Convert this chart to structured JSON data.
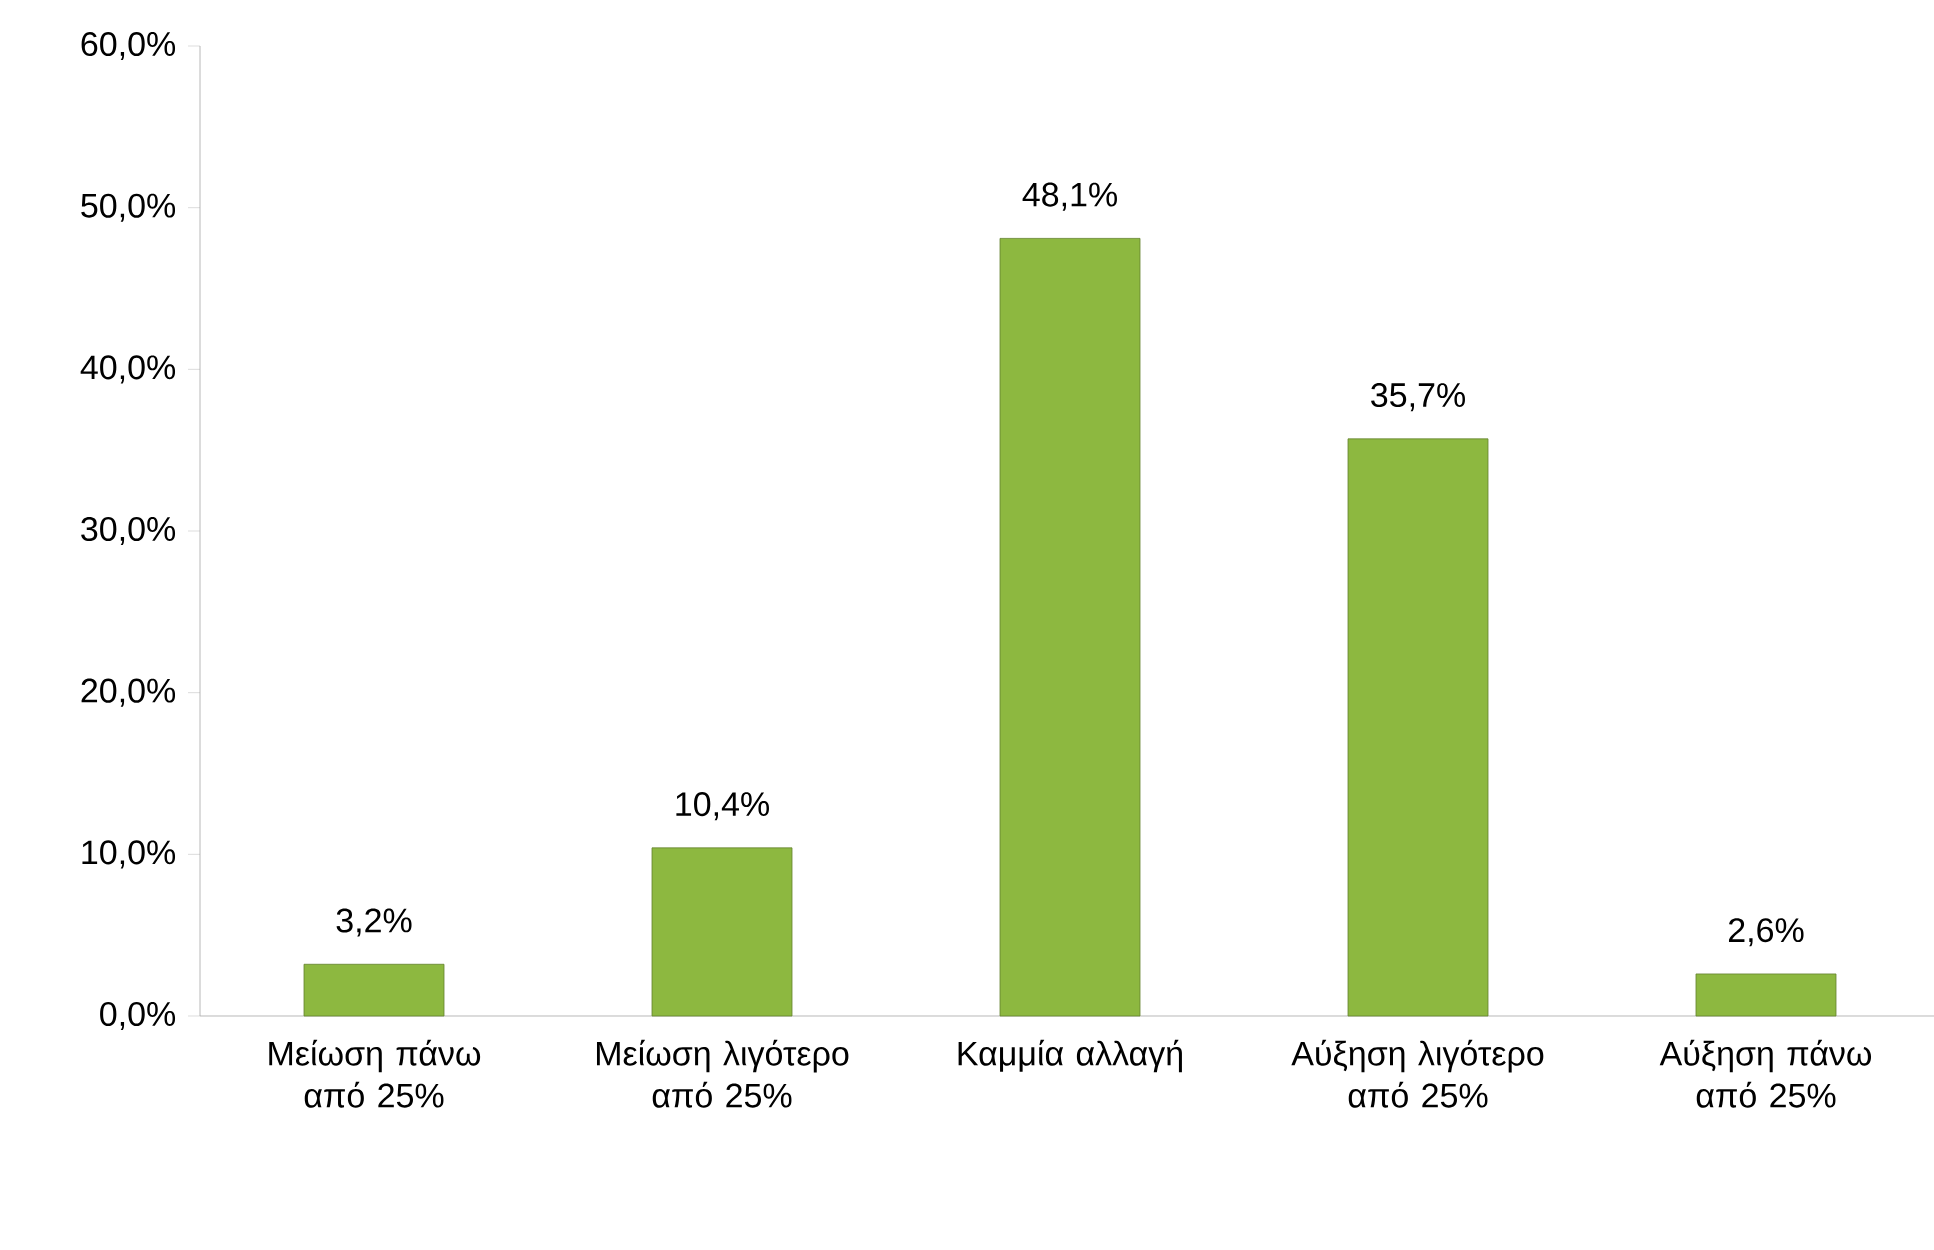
{
  "chart_data": {
    "type": "bar",
    "categories": [
      "Μείωση πάνω από 25%",
      "Μείωση λιγότερο από 25%",
      "Καμμία αλλαγή",
      "Αύξηση λιγότερο από 25%",
      "Αύξηση πάνω από 25%"
    ],
    "values": [
      3.2,
      10.4,
      48.1,
      35.7,
      2.6
    ],
    "value_labels": [
      "3,2%",
      "10,4%",
      "48,1%",
      "35,7%",
      "2,6%"
    ],
    "color": "#8db840",
    "ylim": [
      0,
      60
    ],
    "yticks": [
      {
        "value": 0,
        "label": "0,0%"
      },
      {
        "value": 10,
        "label": "10,0%"
      },
      {
        "value": 20,
        "label": "20,0%"
      },
      {
        "value": 30,
        "label": "30,0%"
      },
      {
        "value": 40,
        "label": "40,0%"
      },
      {
        "value": 50,
        "label": "50,0%"
      },
      {
        "value": 60,
        "label": "60,0%"
      }
    ],
    "grid": false
  }
}
